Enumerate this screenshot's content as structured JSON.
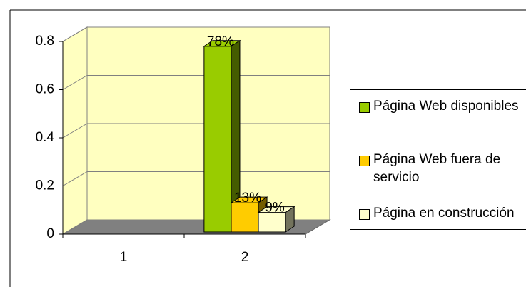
{
  "chart_data": {
    "type": "bar3d",
    "categories": [
      "1",
      "2"
    ],
    "series": [
      {
        "name": "Página Web disponibles",
        "color": "#99cc00",
        "values": [
          null,
          0.78
        ],
        "value_labels": [
          null,
          "78%"
        ]
      },
      {
        "name": "Página Web fuera de servicio",
        "color": "#ffcc00",
        "values": [
          null,
          0.13
        ],
        "value_labels": [
          null,
          "13%"
        ]
      },
      {
        "name": "Página en construcción",
        "color": "#ffffcc",
        "values": [
          null,
          0.09
        ],
        "value_labels": [
          null,
          "9%"
        ]
      }
    ],
    "ylim": [
      0,
      0.8
    ],
    "yticks": [
      0,
      0.2,
      0.4,
      0.6,
      0.8
    ],
    "grid": true,
    "legend": "right"
  }
}
